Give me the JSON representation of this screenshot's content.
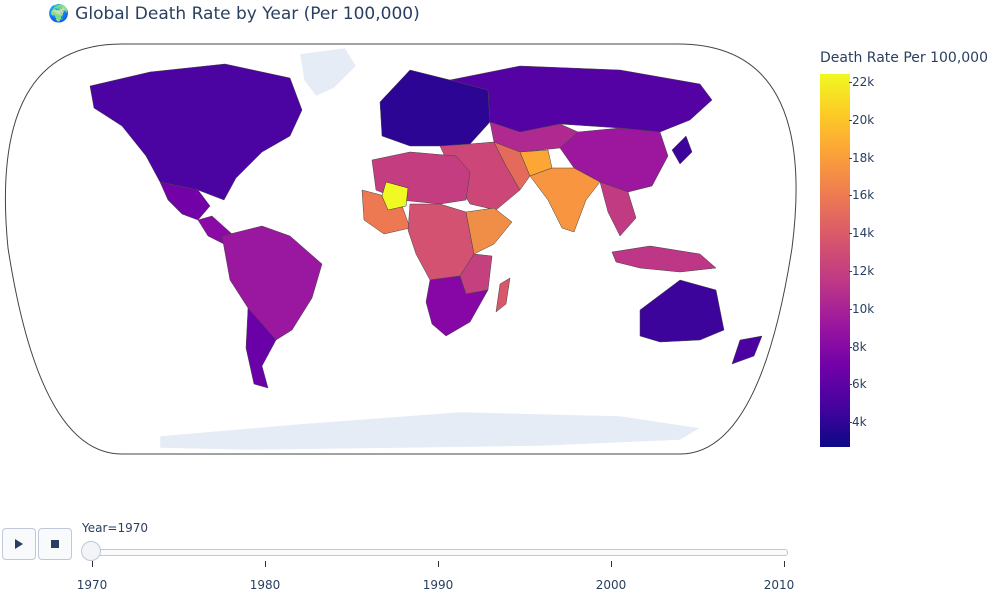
{
  "title": "Global Death Rate by Year (Per 100,000)",
  "title_icon": "globe-icon",
  "colorbar": {
    "title": "Death Rate Per 100,000",
    "ticks": [
      "22k",
      "20k",
      "18k",
      "16k",
      "14k",
      "12k",
      "10k",
      "8k",
      "6k",
      "4k"
    ],
    "colorscale": [
      "#0d0887",
      "#46039f",
      "#7201a8",
      "#9c179e",
      "#bd3786",
      "#d8576b",
      "#ed7953",
      "#fb9f3a",
      "#fdca26",
      "#f0f921"
    ],
    "range": [
      2500,
      22600
    ]
  },
  "controls": {
    "play_icon": "play-icon",
    "stop_icon": "stop-icon",
    "current_label": "Year=1970",
    "current_year": 1970,
    "ticks": [
      "1970",
      "1980",
      "1990",
      "2000",
      "2010"
    ]
  },
  "map": {
    "projection": "robinson",
    "no_data_color": "#e5ecf6",
    "regions": [
      {
        "name": "north-america",
        "color": "#4b03a1"
      },
      {
        "name": "mexico",
        "color": "#7301a8"
      },
      {
        "name": "central-america",
        "color": "#8b0aa5"
      },
      {
        "name": "south-america",
        "color": "#9a179f"
      },
      {
        "name": "argentina",
        "color": "#6a00a8"
      },
      {
        "name": "europe",
        "color": "#2c0594"
      },
      {
        "name": "russia",
        "color": "#5402a3"
      },
      {
        "name": "central-asia",
        "color": "#b02991"
      },
      {
        "name": "china",
        "color": "#9c179e"
      },
      {
        "name": "middle-east",
        "color": "#cc4778"
      },
      {
        "name": "iran",
        "color": "#e46a5b"
      },
      {
        "name": "afghanistan",
        "color": "#fca636"
      },
      {
        "name": "india",
        "color": "#f89540"
      },
      {
        "name": "southeast-asia",
        "color": "#c13b82"
      },
      {
        "name": "indonesia",
        "color": "#bd3786"
      },
      {
        "name": "japan",
        "color": "#3d049b"
      },
      {
        "name": "north-africa",
        "color": "#c33d80"
      },
      {
        "name": "west-africa",
        "color": "#ed7953"
      },
      {
        "name": "mali",
        "color": "#f0f921"
      },
      {
        "name": "central-africa",
        "color": "#d35171"
      },
      {
        "name": "ethiopia",
        "color": "#f08d47"
      },
      {
        "name": "east-africa",
        "color": "#c5407e"
      },
      {
        "name": "southern-africa",
        "color": "#8707a6"
      },
      {
        "name": "madagascar",
        "color": "#d8576b"
      },
      {
        "name": "australia",
        "color": "#3c049b"
      },
      {
        "name": "new-zealand",
        "color": "#4c02a1"
      },
      {
        "name": "greenland",
        "color": "#e5ecf6"
      },
      {
        "name": "antarctica",
        "color": "#e5ecf6"
      }
    ]
  }
}
